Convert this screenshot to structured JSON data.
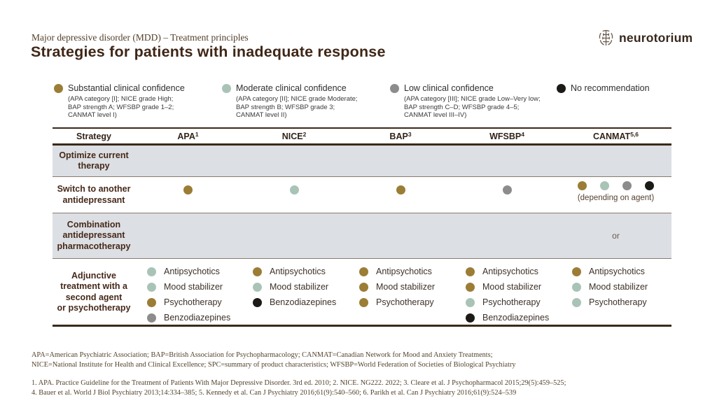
{
  "slide": {
    "eyebrow": "Major depressive disorder (MDD) – Treatment principles",
    "title": "Strategies for patients with inadequate response",
    "brand": "neurotorium"
  },
  "colors": {
    "substantial": "#9c7d36",
    "moderate": "#a9c4b7",
    "low": "#8c8c8c",
    "none": "#1c1a17"
  },
  "legend": [
    {
      "level": "substantial",
      "label": "Substantial clinical confidence",
      "detail": "(APA category [I]; NICE grade High;\nBAP strength A; WFSBP grade 1–2;\nCANMAT level I)"
    },
    {
      "level": "moderate",
      "label": "Moderate clinical confidence",
      "detail": "(APA category [II]; NICE grade Moderate;\nBAP strength B; WFSBP grade 3;\nCANMAT level II)"
    },
    {
      "level": "low",
      "label": "Low clinical confidence",
      "detail": "(APA category [III]; NICE grade Low–Very low;\nBAP strength C–D; WFSBP grade 4–5;\nCANMAT level III–IV)"
    },
    {
      "level": "none",
      "label": "No recommendation",
      "detail": ""
    }
  ],
  "table": {
    "headers": [
      {
        "label": "Strategy",
        "sup": ""
      },
      {
        "label": "APA",
        "sup": "1"
      },
      {
        "label": "NICE",
        "sup": "2"
      },
      {
        "label": "BAP",
        "sup": "3"
      },
      {
        "label": "WFSBP",
        "sup": "4"
      },
      {
        "label": "CANMAT",
        "sup": "5,6"
      }
    ],
    "rows": [
      {
        "strategy": "Optimize current\ntherapy"
      },
      {
        "strategy": "Switch to another\nantidepressant",
        "apa": "substantial",
        "nice": "moderate",
        "bap": "substantial",
        "wfsbp": "low",
        "canmat_dots": [
          "substantial",
          "moderate",
          "low",
          "none"
        ],
        "canmat_note": "(depending on agent)"
      },
      {
        "strategy": "Combination\nantidepressant\npharmacotherapy",
        "canmat_text": "or"
      },
      {
        "strategy": "Adjunctive\ntreatment with a\nsecond agent\nor psychotherapy",
        "apa": [
          {
            "level": "moderate",
            "label": "Antipsychotics"
          },
          {
            "level": "moderate",
            "label": "Mood stabilizer"
          },
          {
            "level": "substantial",
            "label": "Psychotherapy"
          },
          {
            "level": "low",
            "label": "Benzodiazepines"
          }
        ],
        "nice": [
          {
            "level": "substantial",
            "label": "Antipsychotics"
          },
          {
            "level": "moderate",
            "label": "Mood stabilizer"
          },
          {
            "level": "none",
            "label": "Benzodiazepines"
          }
        ],
        "bap": [
          {
            "level": "substantial",
            "label": "Antipsychotics"
          },
          {
            "level": "substantial",
            "label": "Mood stabilizer"
          },
          {
            "level": "substantial",
            "label": "Psychotherapy"
          }
        ],
        "wfsbp": [
          {
            "level": "substantial",
            "label": "Antipsychotics"
          },
          {
            "level": "substantial",
            "label": "Mood stabilizer"
          },
          {
            "level": "moderate",
            "label": "Psychotherapy"
          },
          {
            "level": "none",
            "label": "Benzodiazepines"
          }
        ],
        "canmat": [
          {
            "level": "substantial",
            "label": "Antipsychotics"
          },
          {
            "level": "moderate",
            "label": "Mood stabilizer"
          },
          {
            "level": "moderate",
            "label": "Psychotherapy"
          }
        ]
      }
    ]
  },
  "footnotes": {
    "abbrev_line1": "APA=American Psychiatric Association; BAP=British Association for Psychopharmacology; CANMAT=Canadian Network for Mood and Anxiety Treatments;",
    "abbrev_line2": "NICE=National Institute for Health and Clinical Excellence; SPC=summary of product characteristics; WFSBP=World Federation of Societies of Biological Psychiatry",
    "ref_line1": "1. APA. Practice Guideline for the Treatment of Patients With Major Depressive Disorder. 3rd ed. 2010; 2. NICE. NG222. 2022; 3. Cleare et al. J Psychopharmacol 2015;29(5):459–525;",
    "ref_line2": "4. Bauer et al. World J Biol Psychiatry 2013;14:334–385; 5. Kennedy et al. Can J Psychiatry 2016;61(9):540–560; 6. Parikh et al. Can J Psychiatry 2016;61(9):524–539"
  }
}
